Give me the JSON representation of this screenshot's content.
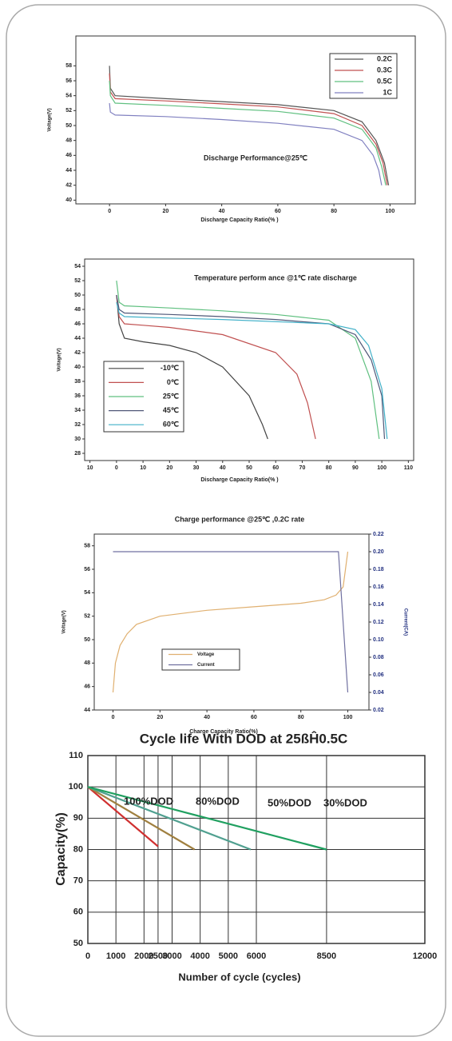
{
  "chart_data": [
    {
      "type": "line",
      "title": "Discharge Performance@25℃",
      "xlabel": "Discharge Capacity Ratio(% )",
      "ylabel": "Voltage(V)",
      "xlim": [
        -12,
        109
      ],
      "ylim": [
        39.5,
        62
      ],
      "xticks": [
        0,
        20,
        40,
        60,
        80,
        100
      ],
      "yticks": [
        40,
        42,
        44,
        46,
        48,
        50,
        52,
        54,
        56,
        58
      ],
      "series": [
        {
          "name": "0.2C",
          "color": "#555555",
          "x": [
            0,
            0.3,
            2,
            20,
            40,
            60,
            80,
            90,
            95,
            98,
            99.5
          ],
          "values": [
            58,
            55,
            54,
            53.6,
            53.2,
            52.8,
            52,
            50.5,
            48,
            45,
            42
          ]
        },
        {
          "name": "0.3C",
          "color": "#c05050",
          "x": [
            0,
            0.3,
            2,
            20,
            40,
            60,
            80,
            90,
            95,
            97.5,
            99
          ],
          "values": [
            57,
            54.5,
            53.6,
            53.3,
            52.9,
            52.5,
            51.6,
            50,
            47.5,
            45,
            42
          ]
        },
        {
          "name": "0.5C",
          "color": "#60c080",
          "x": [
            0,
            0.3,
            2,
            20,
            40,
            60,
            80,
            90,
            95,
            97,
            98.5
          ],
          "values": [
            56,
            54,
            53,
            52.7,
            52.3,
            51.9,
            51,
            49.5,
            47,
            44.5,
            42
          ]
        },
        {
          "name": "1C",
          "color": "#8080c0",
          "x": [
            0,
            0.3,
            2,
            20,
            40,
            60,
            80,
            90,
            94,
            96,
            97
          ],
          "values": [
            53,
            51.8,
            51.4,
            51.2,
            50.8,
            50.3,
            49.5,
            48,
            46,
            44,
            42
          ]
        }
      ]
    },
    {
      "type": "line",
      "title": "Temperature perform ance @1℃ rate discharge",
      "xlabel": "Discharge Capacity Ratio(% )",
      "ylabel": "Voltage(V)",
      "xlim": [
        -12,
        112
      ],
      "ylim": [
        27,
        55
      ],
      "xticks": [
        {
          "value": -10,
          "label": "10"
        },
        0,
        10,
        20,
        30,
        40,
        50,
        60,
        70,
        80,
        90,
        100,
        110
      ],
      "yticks": [
        28,
        30,
        32,
        34,
        36,
        38,
        40,
        42,
        44,
        46,
        48,
        50,
        52,
        54
      ],
      "series": [
        {
          "name": "-10℃",
          "color": "#444444",
          "x": [
            0,
            1,
            3,
            10,
            20,
            30,
            40,
            50,
            55,
            57
          ],
          "values": [
            50,
            46,
            44,
            43.5,
            43,
            42,
            40,
            36,
            32,
            30
          ]
        },
        {
          "name": "0℃",
          "color": "#c05050",
          "x": [
            0,
            1,
            3,
            10,
            20,
            40,
            60,
            68,
            72,
            75
          ],
          "values": [
            50,
            47,
            46,
            45.8,
            45.5,
            44.5,
            42,
            39,
            35,
            30
          ]
        },
        {
          "name": "25℃",
          "color": "#60c080",
          "x": [
            0,
            1,
            3,
            20,
            40,
            60,
            80,
            90,
            96,
            99
          ],
          "values": [
            52,
            49,
            48.5,
            48.2,
            47.8,
            47.3,
            46.5,
            44,
            38,
            30
          ]
        },
        {
          "name": "45℃",
          "color": "#505878",
          "x": [
            0,
            1,
            3,
            20,
            40,
            60,
            80,
            90,
            96,
            100,
            101
          ],
          "values": [
            50,
            48,
            47.5,
            47.3,
            47,
            46.6,
            46,
            44.5,
            41,
            36,
            30
          ]
        },
        {
          "name": "60℃",
          "color": "#40b0c8",
          "x": [
            0,
            1,
            3,
            20,
            40,
            60,
            80,
            90,
            95,
            100,
            102
          ],
          "values": [
            49,
            47.5,
            47,
            46.8,
            46.6,
            46.3,
            46,
            45.2,
            43,
            37,
            30
          ]
        }
      ]
    },
    {
      "type": "line",
      "title": "Charge performance @25℃ ,0.2C rate",
      "xlabel": "Charge Capacity Ratio(%)",
      "ylabel": "Voltage(V)",
      "y2label": "Current(CA)",
      "xlim": [
        -8,
        109
      ],
      "ylim": [
        44,
        59
      ],
      "y2lim": [
        0.02,
        0.22
      ],
      "xticks": [
        0,
        20,
        40,
        60,
        80,
        100
      ],
      "yticks": [
        44,
        46,
        48,
        50,
        52,
        54,
        56,
        58
      ],
      "y2ticks": [
        0.02,
        0.04,
        0.06,
        0.08,
        {
          "value": 0.1,
          "label": "0.10"
        },
        0.12,
        0.14,
        0.16,
        0.18,
        {
          "value": 0.2,
          "label": "0.20"
        },
        0.22
      ],
      "series": [
        {
          "name": "Voltage",
          "color": "#e0b070",
          "x": [
            0,
            1,
            3,
            6,
            10,
            20,
            40,
            60,
            80,
            90,
            95,
            98,
            99,
            100
          ],
          "values": [
            45.5,
            48,
            49.5,
            50.5,
            51.3,
            52,
            52.5,
            52.8,
            53.1,
            53.4,
            53.8,
            54.5,
            56,
            57.5
          ]
        },
        {
          "name": "Current",
          "color": "#7070a0",
          "axis": "y2",
          "x": [
            0,
            96,
            100
          ],
          "values": [
            0.2,
            0.2,
            0.04
          ]
        }
      ]
    },
    {
      "type": "line",
      "title": "Cycle life With DOD at 25ßĤ0.5C",
      "xlabel": "Number of cycle (cycles)",
      "ylabel": "Capacity(%)",
      "xlim": [
        0,
        12000
      ],
      "ylim": [
        50,
        110
      ],
      "xticks": [
        0,
        1000,
        2000,
        2500,
        3000,
        4000,
        5000,
        6000,
        8500,
        12000
      ],
      "yticks": [
        50,
        60,
        70,
        80,
        90,
        100,
        110
      ],
      "grid": true,
      "series": [
        {
          "name": "100%DOD",
          "color": "#d03030",
          "x": [
            0,
            2500
          ],
          "values": [
            100,
            81
          ]
        },
        {
          "name": "80%DOD",
          "color": "#a08040",
          "x": [
            0,
            3800
          ],
          "values": [
            100,
            80
          ]
        },
        {
          "name": "50%DOD",
          "color": "#50a090",
          "x": [
            0,
            5800
          ],
          "values": [
            100,
            80
          ]
        },
        {
          "name": "30%DOD",
          "color": "#20a060",
          "x": [
            0,
            8500
          ],
          "values": [
            100,
            80
          ]
        }
      ]
    }
  ]
}
